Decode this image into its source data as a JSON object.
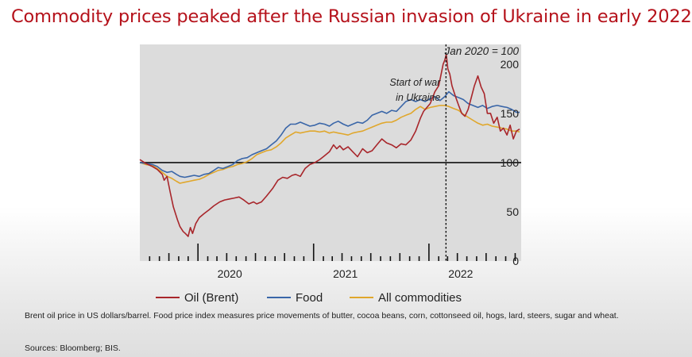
{
  "title": "Commodity prices peaked after the Russian invasion of Ukraine in early 2022",
  "footnote": "Brent oil price in US dollars/barrel.  Food price index measures price movements of butter, cocoa beans, corn, cottonseed oil, hogs, lard, steers, sugar and wheat.",
  "sources": "Sources: Bloomberg; BIS.",
  "colors": {
    "title": "#b5121b",
    "oil": "#a8262b",
    "food": "#3a66a8",
    "all": "#e0a72c",
    "plot_bg": "#dcdcdc"
  },
  "chart_data": {
    "type": "line",
    "title": "",
    "unit_label": "Jan 2020 = 100",
    "ylim": [
      0,
      220
    ],
    "yticks": [
      0,
      50,
      100,
      150,
      200
    ],
    "xlim": [
      "2019-07-01",
      "2022-10-20"
    ],
    "xtick_labels": [
      {
        "label": "2020",
        "date": "2020-01-01"
      },
      {
        "label": "2021",
        "date": "2021-01-01"
      },
      {
        "label": "2022",
        "date": "2022-01-01"
      }
    ],
    "annotation": {
      "text": [
        "Start of war",
        "in Ukraine"
      ],
      "date": "2022-02-24"
    },
    "reference_line": 100,
    "legend_position": "bottom",
    "series": [
      {
        "name": "Oil (Brent)",
        "color_key": "oil",
        "points": [
          [
            "2019-07-01",
            103
          ],
          [
            "2019-07-20",
            99
          ],
          [
            "2019-08-10",
            96
          ],
          [
            "2019-08-25",
            93
          ],
          [
            "2019-09-10",
            88
          ],
          [
            "2019-09-16",
            82
          ],
          [
            "2019-09-25",
            86
          ],
          [
            "2019-10-05",
            70
          ],
          [
            "2019-10-15",
            55
          ],
          [
            "2019-10-28",
            42
          ],
          [
            "2019-11-05",
            35
          ],
          [
            "2019-11-15",
            30
          ],
          [
            "2019-11-22",
            28
          ],
          [
            "2019-12-01",
            25
          ],
          [
            "2019-12-08",
            34
          ],
          [
            "2019-12-15",
            28
          ],
          [
            "2019-12-25",
            38
          ],
          [
            "2020-01-05",
            44
          ],
          [
            "2020-01-20",
            48
          ],
          [
            "2020-02-05",
            52
          ],
          [
            "2020-02-20",
            56
          ],
          [
            "2020-03-10",
            60
          ],
          [
            "2020-03-25",
            62
          ],
          [
            "2020-04-10",
            63
          ],
          [
            "2020-04-25",
            64
          ],
          [
            "2020-05-10",
            65
          ],
          [
            "2020-05-25",
            62
          ],
          [
            "2020-06-10",
            58
          ],
          [
            "2020-06-25",
            60
          ],
          [
            "2020-07-05",
            58
          ],
          [
            "2020-07-20",
            60
          ],
          [
            "2020-08-05",
            66
          ],
          [
            "2020-08-25",
            74
          ],
          [
            "2020-09-10",
            82
          ],
          [
            "2020-09-25",
            85
          ],
          [
            "2020-10-10",
            84
          ],
          [
            "2020-10-25",
            87
          ],
          [
            "2020-11-05",
            88
          ],
          [
            "2020-11-20",
            86
          ],
          [
            "2020-12-05",
            94
          ],
          [
            "2020-12-20",
            98
          ],
          [
            "2021-01-05",
            100
          ],
          [
            "2021-01-20",
            103
          ],
          [
            "2021-02-05",
            107
          ],
          [
            "2021-02-20",
            111
          ],
          [
            "2021-03-05",
            118
          ],
          [
            "2021-03-15",
            114
          ],
          [
            "2021-03-25",
            117
          ],
          [
            "2021-04-05",
            113
          ],
          [
            "2021-04-20",
            116
          ],
          [
            "2021-05-05",
            111
          ],
          [
            "2021-05-20",
            106
          ],
          [
            "2021-06-05",
            114
          ],
          [
            "2021-06-20",
            110
          ],
          [
            "2021-07-05",
            112
          ],
          [
            "2021-07-20",
            118
          ],
          [
            "2021-08-05",
            124
          ],
          [
            "2021-08-20",
            120
          ],
          [
            "2021-09-05",
            118
          ],
          [
            "2021-09-20",
            115
          ],
          [
            "2021-10-05",
            119
          ],
          [
            "2021-10-20",
            118
          ],
          [
            "2021-11-05",
            123
          ],
          [
            "2021-11-20",
            132
          ],
          [
            "2021-12-05",
            145
          ],
          [
            "2021-12-15",
            152
          ],
          [
            "2022-01-05",
            160
          ],
          [
            "2022-01-20",
            172
          ],
          [
            "2022-02-01",
            178
          ],
          [
            "2022-02-10",
            192
          ],
          [
            "2022-02-15",
            200
          ],
          [
            "2022-02-20",
            204
          ],
          [
            "2022-02-25",
            210
          ],
          [
            "2022-03-02",
            195
          ],
          [
            "2022-03-08",
            190
          ],
          [
            "2022-03-15",
            178
          ],
          [
            "2022-03-25",
            168
          ],
          [
            "2022-04-05",
            158
          ],
          [
            "2022-04-15",
            150
          ],
          [
            "2022-04-25",
            147
          ],
          [
            "2022-05-05",
            154
          ],
          [
            "2022-05-15",
            166
          ],
          [
            "2022-05-25",
            178
          ],
          [
            "2022-06-05",
            188
          ],
          [
            "2022-06-15",
            177
          ],
          [
            "2022-06-25",
            170
          ],
          [
            "2022-07-05",
            150
          ],
          [
            "2022-07-15",
            150
          ],
          [
            "2022-07-25",
            140
          ],
          [
            "2022-08-05",
            146
          ],
          [
            "2022-08-15",
            132
          ],
          [
            "2022-08-25",
            135
          ],
          [
            "2022-09-05",
            128
          ],
          [
            "2022-09-15",
            138
          ],
          [
            "2022-09-25",
            124
          ],
          [
            "2022-10-05",
            132
          ],
          [
            "2022-10-15",
            134
          ]
        ]
      },
      {
        "name": "Food",
        "color_key": "food",
        "points": [
          [
            "2019-07-01",
            100
          ],
          [
            "2019-07-20",
            99
          ],
          [
            "2019-08-10",
            98
          ],
          [
            "2019-08-25",
            96
          ],
          [
            "2019-09-10",
            92
          ],
          [
            "2019-09-25",
            90
          ],
          [
            "2019-10-10",
            91
          ],
          [
            "2019-10-25",
            88
          ],
          [
            "2019-11-05",
            86
          ],
          [
            "2019-11-20",
            85
          ],
          [
            "2019-12-05",
            86
          ],
          [
            "2019-12-20",
            87
          ],
          [
            "2020-01-05",
            86
          ],
          [
            "2020-01-20",
            88
          ],
          [
            "2020-02-05",
            89
          ],
          [
            "2020-02-20",
            92
          ],
          [
            "2020-03-05",
            95
          ],
          [
            "2020-03-20",
            94
          ],
          [
            "2020-04-05",
            96
          ],
          [
            "2020-04-20",
            98
          ],
          [
            "2020-05-05",
            102
          ],
          [
            "2020-05-20",
            104
          ],
          [
            "2020-06-05",
            105
          ],
          [
            "2020-06-20",
            108
          ],
          [
            "2020-07-05",
            110
          ],
          [
            "2020-07-20",
            112
          ],
          [
            "2020-08-05",
            114
          ],
          [
            "2020-08-20",
            118
          ],
          [
            "2020-09-05",
            122
          ],
          [
            "2020-09-20",
            128
          ],
          [
            "2020-10-05",
            135
          ],
          [
            "2020-10-20",
            139
          ],
          [
            "2020-11-05",
            139
          ],
          [
            "2020-11-20",
            141
          ],
          [
            "2020-12-05",
            139
          ],
          [
            "2020-12-20",
            137
          ],
          [
            "2021-01-05",
            138
          ],
          [
            "2021-01-20",
            140
          ],
          [
            "2021-02-05",
            139
          ],
          [
            "2021-02-20",
            137
          ],
          [
            "2021-03-05",
            140
          ],
          [
            "2021-03-20",
            142
          ],
          [
            "2021-04-05",
            139
          ],
          [
            "2021-04-20",
            137
          ],
          [
            "2021-05-05",
            139
          ],
          [
            "2021-05-20",
            141
          ],
          [
            "2021-06-05",
            140
          ],
          [
            "2021-06-20",
            143
          ],
          [
            "2021-07-05",
            148
          ],
          [
            "2021-07-20",
            150
          ],
          [
            "2021-08-05",
            152
          ],
          [
            "2021-08-20",
            150
          ],
          [
            "2021-09-05",
            153
          ],
          [
            "2021-09-20",
            152
          ],
          [
            "2021-10-05",
            157
          ],
          [
            "2021-10-20",
            162
          ],
          [
            "2021-11-05",
            164
          ],
          [
            "2021-11-20",
            162
          ],
          [
            "2021-12-05",
            164
          ],
          [
            "2021-12-20",
            162
          ],
          [
            "2022-01-05",
            165
          ],
          [
            "2022-01-20",
            167
          ],
          [
            "2022-02-05",
            163
          ],
          [
            "2022-02-20",
            167
          ],
          [
            "2022-03-05",
            172
          ],
          [
            "2022-03-20",
            168
          ],
          [
            "2022-04-05",
            166
          ],
          [
            "2022-04-20",
            164
          ],
          [
            "2022-05-05",
            160
          ],
          [
            "2022-05-20",
            158
          ],
          [
            "2022-06-05",
            156
          ],
          [
            "2022-06-20",
            158
          ],
          [
            "2022-07-05",
            155
          ],
          [
            "2022-07-20",
            157
          ],
          [
            "2022-08-05",
            158
          ],
          [
            "2022-08-20",
            157
          ],
          [
            "2022-09-05",
            156
          ],
          [
            "2022-09-20",
            154
          ],
          [
            "2022-10-05",
            151
          ],
          [
            "2022-10-15",
            151
          ]
        ]
      },
      {
        "name": "All commodities",
        "color_key": "all",
        "points": [
          [
            "2019-07-01",
            100
          ],
          [
            "2019-07-20",
            98
          ],
          [
            "2019-08-10",
            97
          ],
          [
            "2019-08-25",
            94
          ],
          [
            "2019-09-10",
            90
          ],
          [
            "2019-09-25",
            86
          ],
          [
            "2019-10-10",
            84
          ],
          [
            "2019-10-25",
            81
          ],
          [
            "2019-11-05",
            79
          ],
          [
            "2019-11-20",
            80
          ],
          [
            "2019-12-05",
            81
          ],
          [
            "2019-12-20",
            82
          ],
          [
            "2020-01-05",
            83
          ],
          [
            "2020-01-20",
            85
          ],
          [
            "2020-02-05",
            88
          ],
          [
            "2020-02-20",
            90
          ],
          [
            "2020-03-05",
            92
          ],
          [
            "2020-03-20",
            93
          ],
          [
            "2020-04-05",
            95
          ],
          [
            "2020-04-20",
            96
          ],
          [
            "2020-05-05",
            98
          ],
          [
            "2020-05-20",
            99
          ],
          [
            "2020-06-05",
            101
          ],
          [
            "2020-06-20",
            104
          ],
          [
            "2020-07-05",
            108
          ],
          [
            "2020-07-20",
            110
          ],
          [
            "2020-08-05",
            112
          ],
          [
            "2020-08-20",
            113
          ],
          [
            "2020-09-05",
            116
          ],
          [
            "2020-09-20",
            120
          ],
          [
            "2020-10-05",
            125
          ],
          [
            "2020-10-20",
            128
          ],
          [
            "2020-11-05",
            131
          ],
          [
            "2020-11-20",
            130
          ],
          [
            "2020-12-05",
            131
          ],
          [
            "2020-12-20",
            132
          ],
          [
            "2021-01-05",
            132
          ],
          [
            "2021-01-20",
            131
          ],
          [
            "2021-02-05",
            132
          ],
          [
            "2021-02-20",
            130
          ],
          [
            "2021-03-05",
            131
          ],
          [
            "2021-03-20",
            130
          ],
          [
            "2021-04-05",
            129
          ],
          [
            "2021-04-20",
            128
          ],
          [
            "2021-05-05",
            130
          ],
          [
            "2021-05-20",
            131
          ],
          [
            "2021-06-05",
            132
          ],
          [
            "2021-06-20",
            134
          ],
          [
            "2021-07-05",
            136
          ],
          [
            "2021-07-20",
            138
          ],
          [
            "2021-08-05",
            140
          ],
          [
            "2021-08-20",
            141
          ],
          [
            "2021-09-05",
            141
          ],
          [
            "2021-09-20",
            143
          ],
          [
            "2021-10-05",
            146
          ],
          [
            "2021-10-20",
            148
          ],
          [
            "2021-11-05",
            150
          ],
          [
            "2021-11-20",
            154
          ],
          [
            "2021-12-05",
            157
          ],
          [
            "2021-12-20",
            154
          ],
          [
            "2022-01-05",
            156
          ],
          [
            "2022-01-20",
            157
          ],
          [
            "2022-02-05",
            158
          ],
          [
            "2022-02-20",
            158
          ],
          [
            "2022-03-05",
            157
          ],
          [
            "2022-03-20",
            155
          ],
          [
            "2022-04-05",
            153
          ],
          [
            "2022-04-20",
            149
          ],
          [
            "2022-05-05",
            146
          ],
          [
            "2022-05-20",
            143
          ],
          [
            "2022-06-05",
            140
          ],
          [
            "2022-06-20",
            138
          ],
          [
            "2022-07-05",
            139
          ],
          [
            "2022-07-20",
            137
          ],
          [
            "2022-08-05",
            136
          ],
          [
            "2022-08-20",
            135
          ],
          [
            "2022-09-05",
            134
          ],
          [
            "2022-09-20",
            132
          ],
          [
            "2022-10-05",
            132
          ],
          [
            "2022-10-15",
            131
          ]
        ]
      }
    ]
  }
}
